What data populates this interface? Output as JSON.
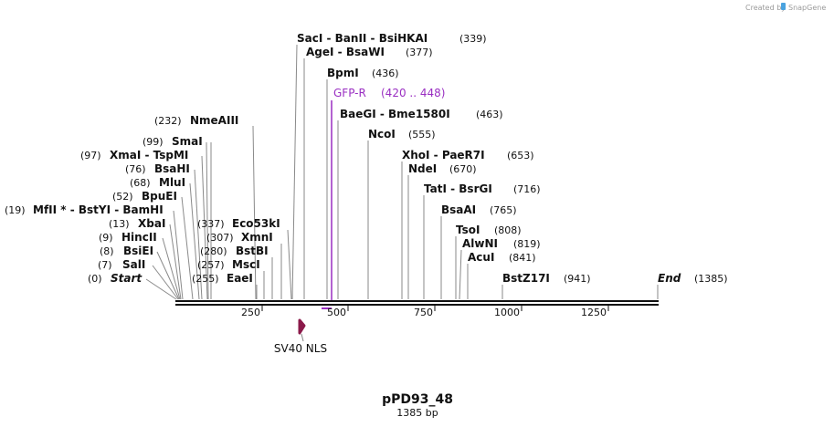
{
  "credit": {
    "text": "Created by",
    "brand": "SnapGene"
  },
  "plasmid": {
    "name": "pPD93_48",
    "size_label": "1385 bp",
    "length": 1385
  },
  "axis": {
    "ticks": [
      "250",
      "500",
      "750",
      "1000",
      "1250"
    ]
  },
  "sites": {
    "start": {
      "label": "Start",
      "pos": "(0)"
    },
    "end": {
      "label": "End",
      "pos": "(1385)"
    },
    "left": [
      {
        "label": "SalI",
        "pos": "(7)"
      },
      {
        "label": "BsiEI",
        "pos": "(8)"
      },
      {
        "label": "HincII",
        "pos": "(9)"
      },
      {
        "label": "XbaI",
        "pos": "(13)"
      },
      {
        "label": "MfII * - BstYI - BamHI",
        "pos": "(19)"
      },
      {
        "label": "BpuEI",
        "pos": "(52)"
      },
      {
        "label": "MluI",
        "pos": "(68)"
      },
      {
        "label": "BsaHI",
        "pos": "(76)"
      },
      {
        "label": "XmaI - TspMI",
        "pos": "(97)"
      },
      {
        "label": "SmaI",
        "pos": "(99)"
      },
      {
        "label": "NmeAIII",
        "pos": "(232)"
      }
    ],
    "mid": [
      {
        "label": "EaeI",
        "pos": "(255)"
      },
      {
        "label": "MscI",
        "pos": "(257)"
      },
      {
        "label": "BstBI",
        "pos": "(280)"
      },
      {
        "label": "XmnI",
        "pos": "(307)"
      },
      {
        "label": "Eco53kI",
        "pos": "(337)"
      }
    ],
    "right": [
      {
        "label": "SacI - BanII - BsiHKAI",
        "pos": "(339)"
      },
      {
        "label": "AgeI - BsaWI",
        "pos": "(377)"
      },
      {
        "label": "BpmI",
        "pos": "(436)"
      },
      {
        "label": "BaeGI - Bme1580I",
        "pos": "(463)"
      },
      {
        "label": "NcoI",
        "pos": "(555)"
      },
      {
        "label": "XhoI - PaeR7I",
        "pos": "(653)"
      },
      {
        "label": "NdeI",
        "pos": "(670)"
      },
      {
        "label": "TatI - BsrGI",
        "pos": "(716)"
      },
      {
        "label": "BsaAI",
        "pos": "(765)"
      },
      {
        "label": "TsoI",
        "pos": "(808)"
      },
      {
        "label": "AlwNI",
        "pos": "(819)"
      },
      {
        "label": "AcuI",
        "pos": "(841)"
      },
      {
        "label": "BstZ17I",
        "pos": "(941)"
      }
    ]
  },
  "primer": {
    "label": "GFP-R",
    "range": "(420 .. 448)",
    "color": "#9a2fc2"
  },
  "feature": {
    "label": "SV40 NLS",
    "color": "#8b1a4a"
  }
}
